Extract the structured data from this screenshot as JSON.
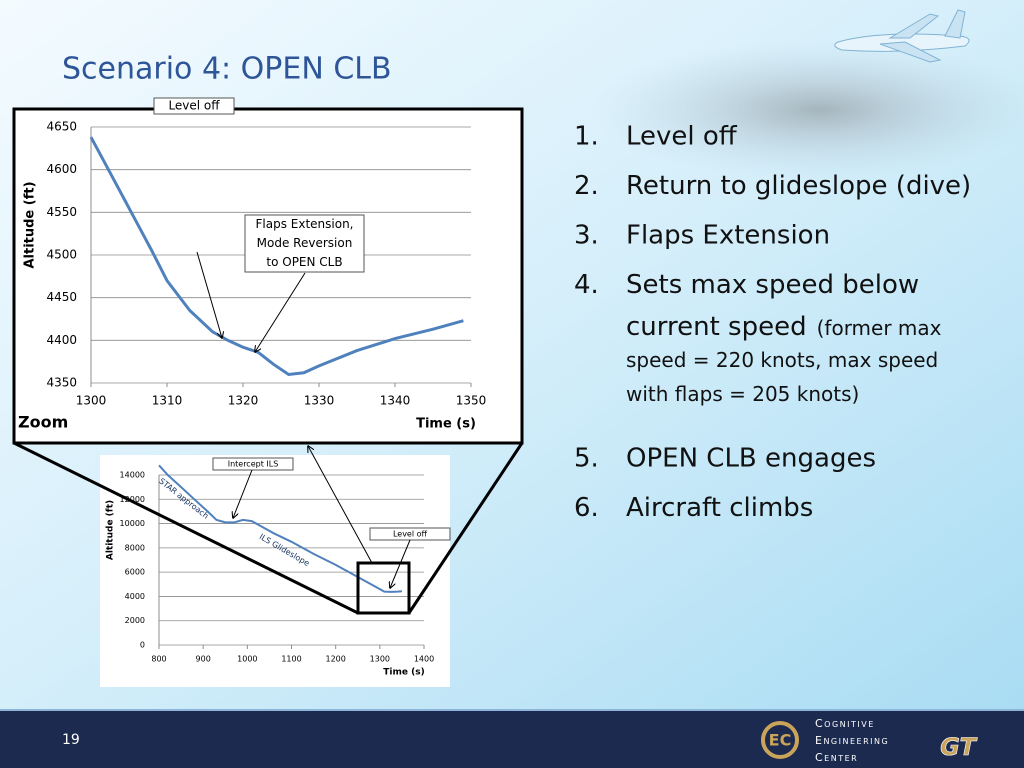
{
  "header": {
    "title": "Scenario 4: OPEN CLB"
  },
  "list": [
    {
      "number": "1.",
      "text": "Level off"
    },
    {
      "number": "2.",
      "text": "Return to glideslope (dive)"
    },
    {
      "number": "3.",
      "text": "Flaps Extension"
    },
    {
      "number": "4.",
      "text": [
        "Sets max speed below",
        "current speed"
      ],
      "note": [
        "(former max",
        "speed = 220 knots, max speed",
        "with flaps = 205 knots)"
      ]
    },
    {
      "number": "5.",
      "text": "OPEN CLB engages"
    },
    {
      "number": "6.",
      "text": "Aircraft climbs"
    }
  ],
  "zoom_label": "Zoom",
  "chart_data": [
    {
      "type": "line",
      "x_label": "Time (s)",
      "y_label": "Altitude (ft)",
      "x": [
        1300,
        1302,
        1305,
        1308,
        1310,
        1313,
        1316,
        1318,
        1320,
        1322,
        1324,
        1326,
        1328,
        1330,
        1335,
        1340,
        1345,
        1349
      ],
      "series": [
        {
          "color": "#4f81bd",
          "values": [
            4638,
            4605,
            4555,
            4505,
            4470,
            4435,
            4410,
            4400,
            4392,
            4386,
            4372,
            4360,
            4362,
            4370,
            4388,
            4402,
            4413,
            4423
          ]
        }
      ],
      "xlim": [
        1300,
        1350
      ],
      "xticks": [
        1300,
        1310,
        1320,
        1330,
        1340,
        1350
      ],
      "ylim": [
        4350,
        4650
      ],
      "yticks": [
        4350,
        4400,
        4450,
        4500,
        4550,
        4600,
        4650
      ],
      "grid": true,
      "annotations": [
        [
          "Level off"
        ],
        [
          "Flaps Extension,",
          "Mode Reversion",
          "to OPEN CLB"
        ]
      ]
    },
    {
      "type": "line",
      "x_label": "Time (s)",
      "y_label": "Altitude (ft)",
      "x": [
        800,
        820,
        850,
        880,
        910,
        930,
        950,
        970,
        990,
        1010,
        1030,
        1060,
        1100,
        1150,
        1200,
        1250,
        1280,
        1300,
        1310,
        1325,
        1340,
        1350
      ],
      "series": [
        {
          "color": "#4f81bd",
          "values": [
            14800,
            14000,
            13000,
            12000,
            11000,
            10300,
            10100,
            10100,
            10300,
            10200,
            9800,
            9200,
            8500,
            7500,
            6600,
            5600,
            5000,
            4600,
            4400,
            4370,
            4400,
            4420
          ]
        }
      ],
      "xlim": [
        800,
        1400
      ],
      "xticks": [
        800,
        900,
        1000,
        1100,
        1200,
        1300,
        1400
      ],
      "ylim": [
        0,
        14000
      ],
      "yticks": [
        0,
        2000,
        4000,
        6000,
        8000,
        10000,
        12000,
        14000
      ],
      "grid": true,
      "annotations": [
        [
          "Intercept ILS"
        ],
        [
          "Level off"
        ],
        [
          "STAR approach"
        ],
        [
          "ILS Glideslope"
        ]
      ]
    }
  ],
  "footer": {
    "page": "19",
    "logo": [
      "Cognitive",
      "Engineering",
      "Center"
    ],
    "gt": "GT"
  }
}
